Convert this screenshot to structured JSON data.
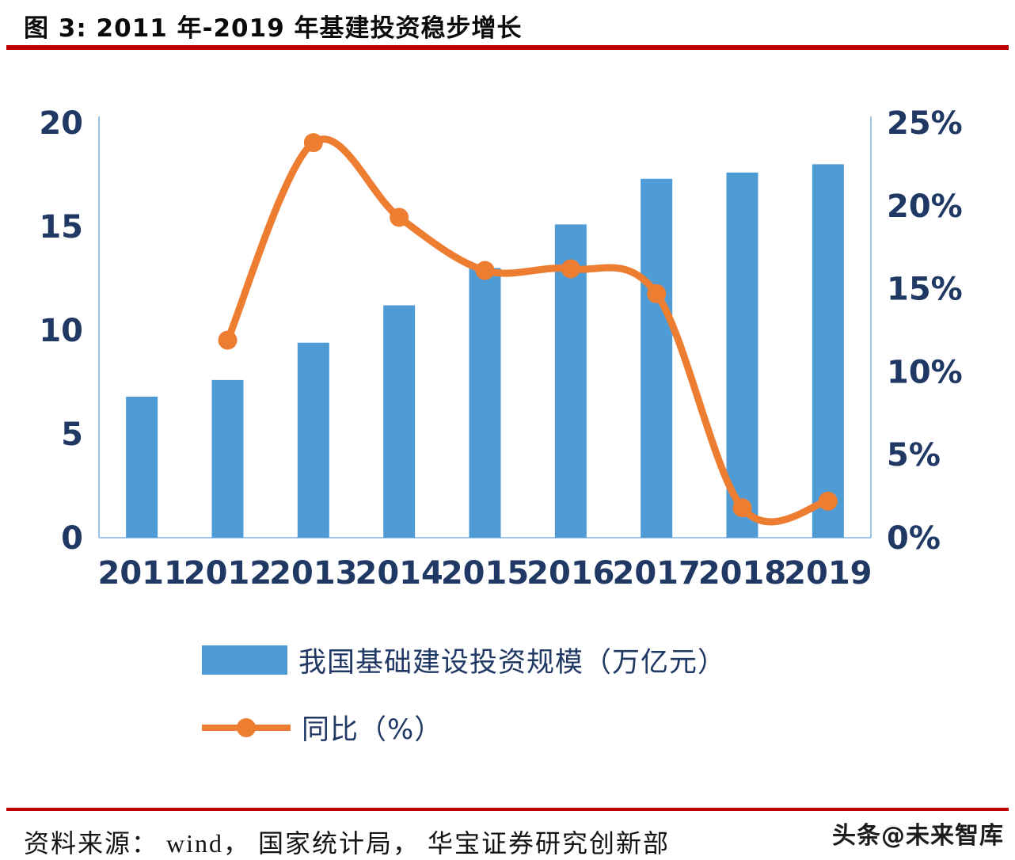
{
  "title": "图  3: 2011 年-2019 年基建投资稳步增长",
  "source": "资料来源： wind， 国家统计局， 华宝证券研究创新部",
  "watermark": "头条@未来智库",
  "colors": {
    "bar": "#4f9bd5",
    "line": "#ed7d31",
    "accent_red": "#c00000",
    "axis_text": "#1f3864",
    "axis_line": "#9dc3e6"
  },
  "legend": [
    {
      "type": "bar",
      "label": "我国基础建设投资规模（万亿元）"
    },
    {
      "type": "line",
      "label": "同比（%）"
    }
  ],
  "chart_data": {
    "type": "bar+line",
    "title": "2011 年-2019 年基建投资稳步增长",
    "categories": [
      "2011",
      "2012",
      "2013",
      "2014",
      "2015",
      "2016",
      "2017",
      "2018",
      "2019"
    ],
    "series": [
      {
        "name": "我国基础建设投资规模（万亿元）",
        "type": "bar",
        "axis": "left",
        "values": [
          6.8,
          7.6,
          9.4,
          11.2,
          13.0,
          15.1,
          17.3,
          17.6,
          18.0
        ]
      },
      {
        "name": "同比（%）",
        "type": "line",
        "axis": "right",
        "values": [
          null,
          11.9,
          23.8,
          19.3,
          16.1,
          16.2,
          14.7,
          1.8,
          2.2
        ]
      }
    ],
    "left_axis": {
      "min": 0,
      "max": 20,
      "tick_labels": [
        "0",
        "5",
        "10",
        "15",
        "20"
      ]
    },
    "right_axis": {
      "min": 0,
      "max": 25,
      "tick_labels": [
        "0%",
        "5%",
        "10%",
        "15%",
        "20%",
        "25%"
      ]
    },
    "grid": false,
    "legend_position": "bottom"
  }
}
